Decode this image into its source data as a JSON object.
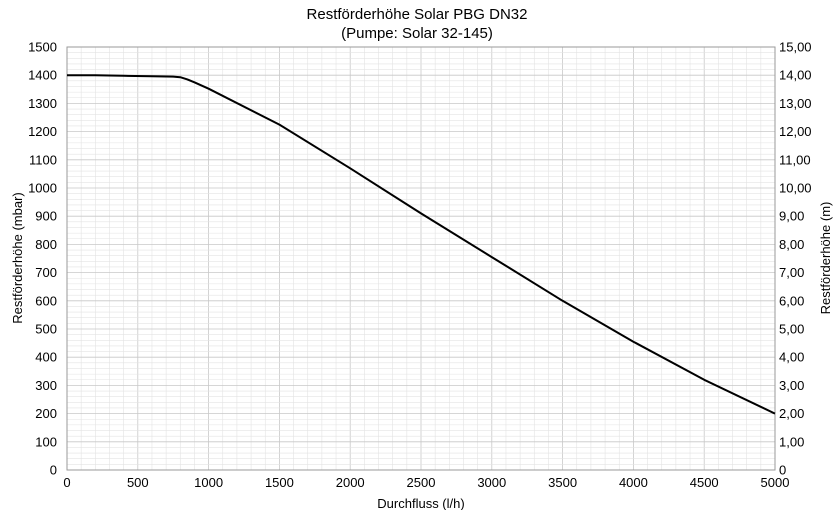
{
  "chart_data": {
    "type": "line",
    "title": "Restförderhöhe Solar PBG DN32",
    "subtitle": "(Pumpe: Solar 32-145)",
    "xlabel": "Durchfluss (l/h)",
    "ylabel": "Restförderhöhe (mbar)",
    "y2label": "Restförderhöhe (m)",
    "xlim": [
      0,
      5000
    ],
    "ylim": [
      0,
      1500
    ],
    "y2lim": [
      0,
      15
    ],
    "grid": true,
    "legend": "none",
    "x_ticks": [
      "0",
      "500",
      "1000",
      "1500",
      "2000",
      "2500",
      "3000",
      "3500",
      "4000",
      "4500",
      "5000"
    ],
    "y_ticks": [
      "0",
      "100",
      "200",
      "300",
      "400",
      "500",
      "600",
      "700",
      "800",
      "900",
      "1000",
      "1100",
      "1200",
      "1300",
      "1400",
      "1500"
    ],
    "y2_ticks": [
      "0",
      "1,00",
      "2,00",
      "3,00",
      "4,00",
      "5,00",
      "6,00",
      "7,00",
      "8,00",
      "9,00",
      "10,00",
      "11,00",
      "12,00",
      "13,00",
      "14,00",
      "15,00"
    ],
    "series": [
      {
        "x": [
          0,
          200,
          400,
          600,
          750,
          800,
          850,
          900,
          1000,
          1500,
          2000,
          2500,
          3000,
          3500,
          4000,
          4500,
          5000
        ],
        "y": [
          1400,
          1400,
          1398,
          1396,
          1395,
          1393,
          1385,
          1375,
          1352,
          1225,
          1070,
          910,
          755,
          600,
          455,
          320,
          200
        ],
        "color": "#000000"
      }
    ]
  }
}
